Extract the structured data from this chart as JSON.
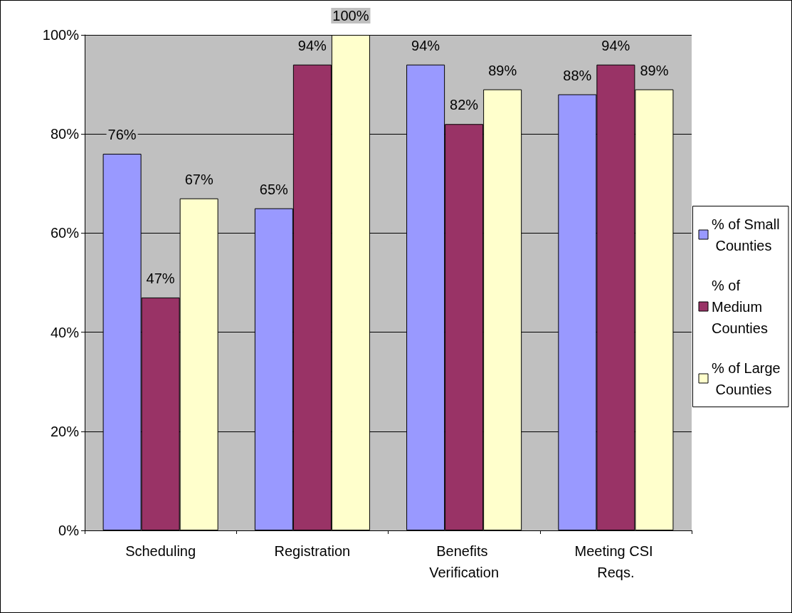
{
  "chart_data": {
    "type": "bar",
    "categories": [
      "Scheduling",
      "Registration",
      "Benefits Verification",
      "Meeting CSI Reqs."
    ],
    "series": [
      {
        "name": "% of Small Counties",
        "color": "#9999ff",
        "values": [
          76,
          65,
          94,
          88
        ],
        "value_labels": [
          "76%",
          "65%",
          "94%",
          "88%"
        ]
      },
      {
        "name": "% of Medium Counties",
        "color": "#993366",
        "values": [
          47,
          94,
          82,
          94
        ],
        "value_labels": [
          "47%",
          "94%",
          "82%",
          "94%"
        ]
      },
      {
        "name": "% of Large Counties",
        "color": "#ffffcc",
        "values": [
          67,
          100,
          89,
          89
        ],
        "value_labels": [
          "67%",
          "100%",
          "89%",
          "89%"
        ]
      }
    ],
    "ylim": [
      0,
      100
    ],
    "yticks": [
      {
        "value": 0,
        "label": "0%"
      },
      {
        "value": 20,
        "label": "20%"
      },
      {
        "value": 40,
        "label": "40%"
      },
      {
        "value": 60,
        "label": "60%"
      },
      {
        "value": 80,
        "label": "80%"
      },
      {
        "value": 100,
        "label": "100%"
      }
    ],
    "grid": "y",
    "legend": "right"
  }
}
